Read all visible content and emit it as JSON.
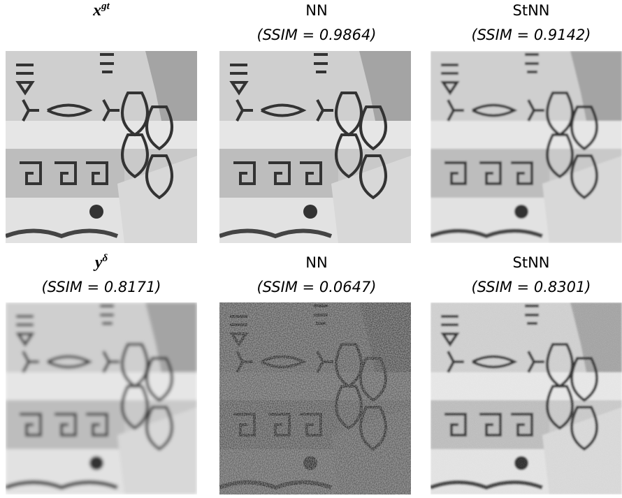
{
  "panels": [
    {
      "title": "x",
      "title_sup": "gt"
    },
    {
      "title": "NN",
      "caption": "(SSIM = 0.9864)"
    },
    {
      "title": "StNN",
      "caption": "(SSIM = 0.9142)"
    },
    {
      "title": "y",
      "title_sup": "δ",
      "caption": "(SSIM = 0.8171)"
    },
    {
      "title": "NN",
      "caption": "(SSIM = 0.0647)"
    },
    {
      "title": "StNN",
      "caption": "(SSIM = 0.8301)"
    }
  ]
}
